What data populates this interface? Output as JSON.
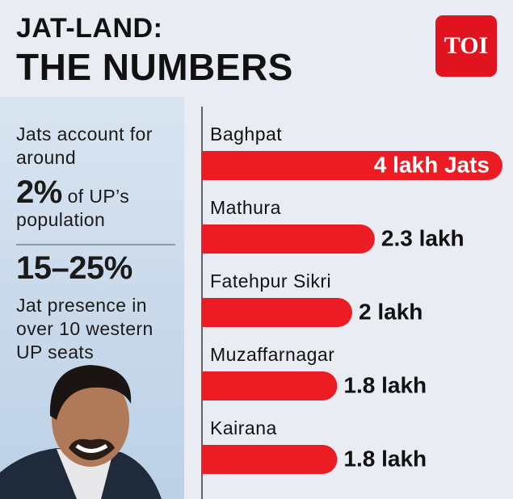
{
  "header": {
    "title_line1": "JAT-LAND:",
    "title_line2": "THE NUMBERS",
    "logo": "TOI"
  },
  "panel": {
    "intro": "Jats account for around",
    "stat1": "2%",
    "stat1_text": "of UP’s population",
    "stat2": "15–25%",
    "stat2_text": "Jat presence in over 10 western UP seats"
  },
  "chart_data": {
    "type": "bar",
    "orientation": "horizontal",
    "color": "#ec1c24",
    "categories": [
      "Baghpat",
      "Mathura",
      "Fatehpur Sikri",
      "Muzaffarnagar",
      "Kairana"
    ],
    "values": [
      4,
      2.3,
      2,
      1.8,
      1.8
    ],
    "value_labels": [
      "4 lakh Jats",
      "2.3 lakh",
      "2 lakh",
      "1.8 lakh",
      "1.8 lakh"
    ]
  }
}
